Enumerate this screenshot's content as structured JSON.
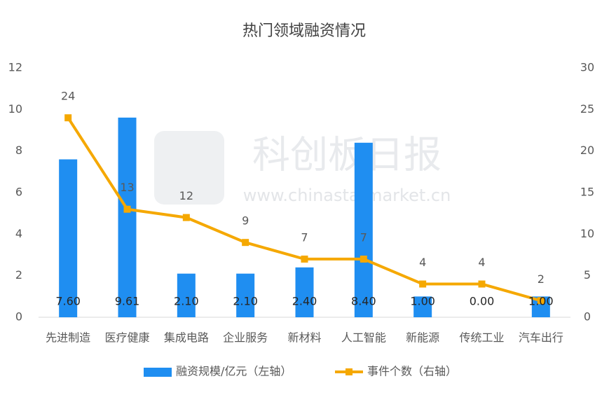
{
  "chart_data": {
    "type": "bar",
    "title": "热门领域融资情况",
    "watermark": {
      "name": "科创板日报",
      "url": "www.chinastarmarket.cn"
    },
    "categories": [
      "先进制造",
      "医疗健康",
      "集成电路",
      "企业服务",
      "新材料",
      "人工智能",
      "新能源",
      "传统工业",
      "汽车出行"
    ],
    "series": [
      {
        "name": "融资规模/亿元（左轴）",
        "type": "bar",
        "color": "#1f8ef1",
        "values": [
          7.6,
          9.61,
          2.1,
          2.1,
          2.4,
          8.4,
          1.0,
          0.0,
          1.0
        ],
        "value_labels": [
          "7.60",
          "9.61",
          "2.10",
          "2.10",
          "2.40",
          "8.40",
          "1.00",
          "0.00",
          "1.00"
        ]
      },
      {
        "name": "事件个数（右轴）",
        "type": "line",
        "axis": "y2",
        "color": "#f5a800",
        "values": [
          24,
          13,
          12,
          9,
          7,
          7,
          4,
          4,
          2
        ]
      }
    ],
    "ylim": [
      0,
      12
    ],
    "yticks": [
      0,
      2,
      4,
      6,
      8,
      10,
      12
    ],
    "y2lim": [
      0,
      30
    ],
    "y2ticks": [
      0,
      5,
      10,
      15,
      20,
      25,
      30
    ],
    "grid": false,
    "legend": "bottom"
  }
}
